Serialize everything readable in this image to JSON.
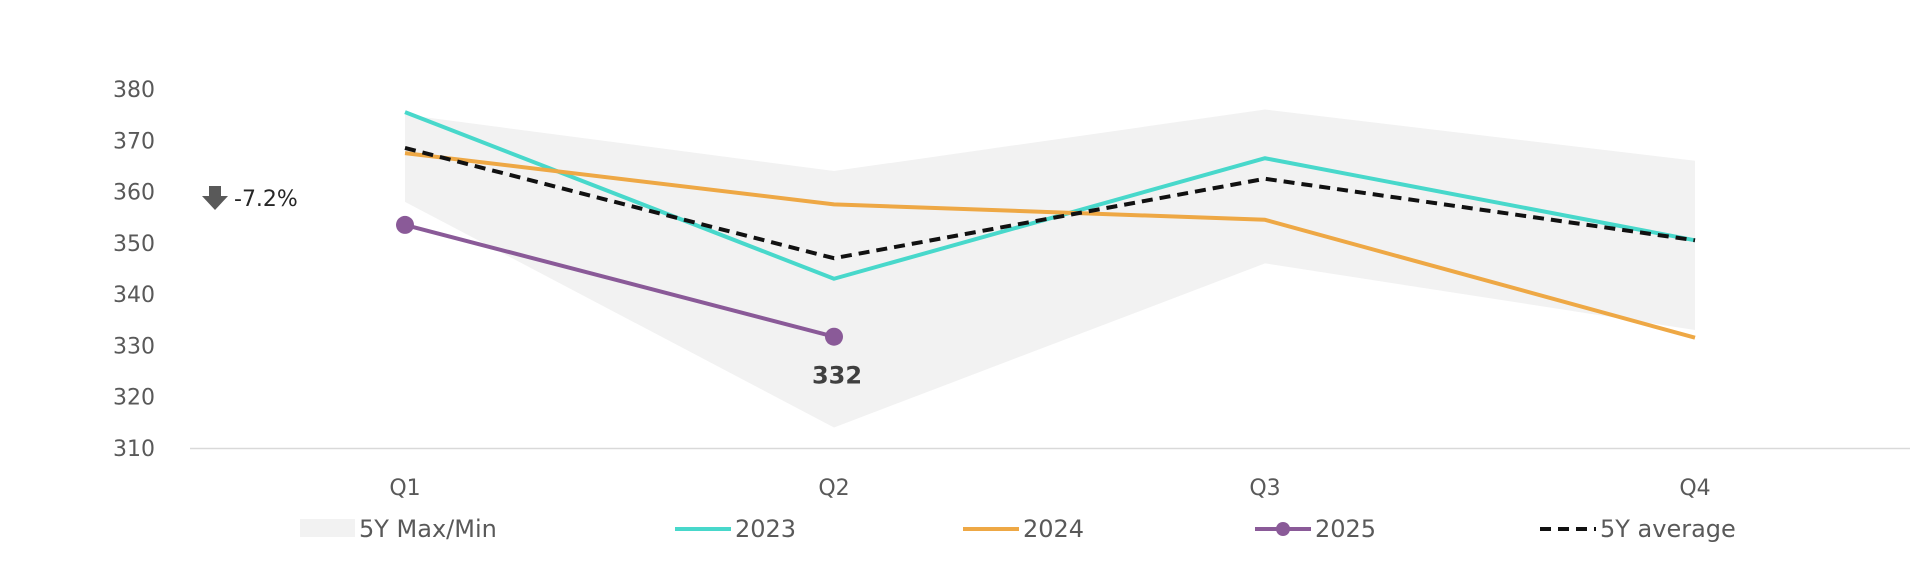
{
  "chart_data": {
    "type": "line",
    "categories": [
      "Q1",
      "Q2",
      "Q3",
      "Q4"
    ],
    "ylim": [
      310,
      380
    ],
    "yticks": [
      310,
      320,
      330,
      340,
      350,
      360,
      370,
      380
    ],
    "grid": false,
    "legend_position": "bottom",
    "band": {
      "name": "5Y Max/Min",
      "max": [
        375,
        364,
        376,
        366
      ],
      "min": [
        358,
        314,
        346,
        333
      ],
      "color": "#f2f2f2"
    },
    "series": [
      {
        "name": "2023",
        "values": [
          375.5,
          343,
          366.5,
          350.5
        ],
        "color": "#48d8cb",
        "style": "solid",
        "markers": false
      },
      {
        "name": "2024",
        "values": [
          367.5,
          357.5,
          354.5,
          331.5
        ],
        "color": "#eea845",
        "style": "solid",
        "markers": false
      },
      {
        "name": "2025",
        "values": [
          353.5,
          331.7,
          null,
          null
        ],
        "color": "#8a5a98",
        "style": "solid",
        "markers": true
      },
      {
        "name": "5Y average",
        "values": [
          368.5,
          347,
          362.5,
          350.5
        ],
        "color": "#111111",
        "style": "dashed",
        "markers": false
      }
    ],
    "data_labels": [
      {
        "series": "2025",
        "category": "Q2",
        "text": "332"
      }
    ],
    "annotation": {
      "icon": "arrow-down-icon",
      "text": "-7.2%",
      "near": "Q1 left"
    }
  }
}
